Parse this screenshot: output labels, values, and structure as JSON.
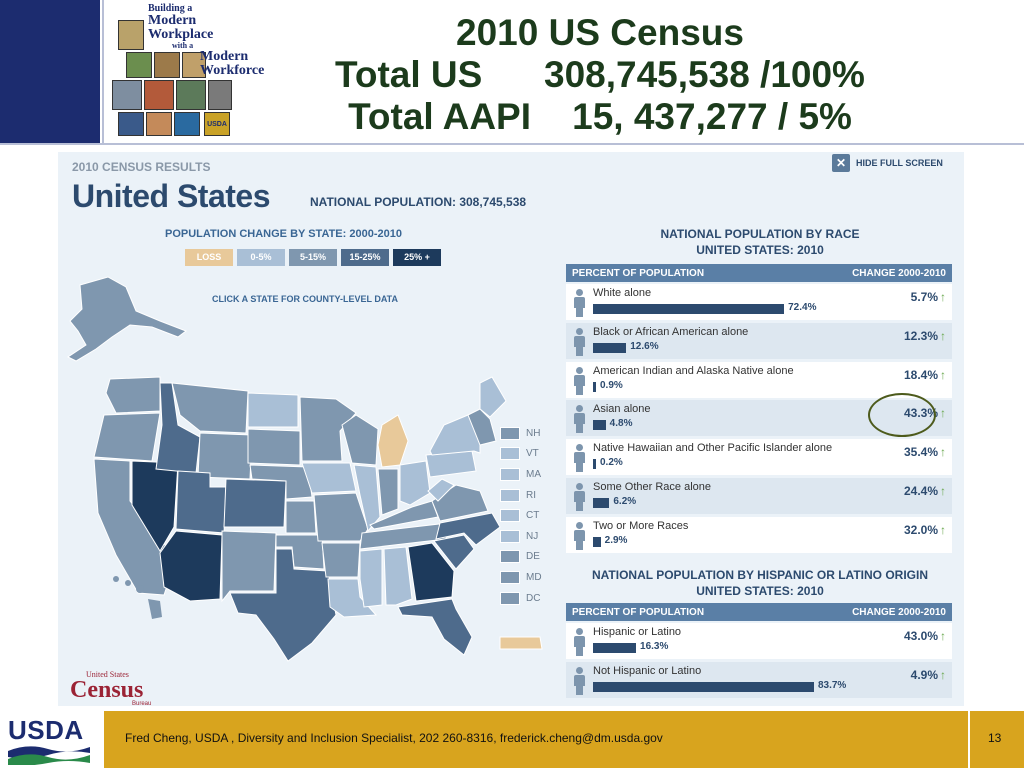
{
  "slide": {
    "title_lines": [
      "2010 US Census",
      "Total US      308,745,538 /100%",
      "Total AAPI    15, 437,277 / 5%"
    ],
    "logo": {
      "line1": "Building a",
      "line2": "Modern",
      "line3": "Workplace",
      "line4": "with a",
      "line5": "Modern",
      "line6": "Workforce",
      "tile_label": "USDA"
    },
    "footer_text": "Fred Cheng, USDA , Diversity and Inclusion Specialist, 202 260-8316, frederick.cheng@dm.usda.gov",
    "page_number": "13",
    "usda_logo_text": "USDA"
  },
  "census": {
    "kicker": "2010 CENSUS RESULTS",
    "country": "United States",
    "national_population": "NATIONAL POPULATION: 308,745,538",
    "hide_full_screen": "HIDE FULL SCREEN",
    "map": {
      "title": "POPULATION CHANGE BY STATE: 2000-2010",
      "click_note": "CLICK A STATE FOR COUNTY-LEVEL DATA",
      "legend": [
        {
          "label": "LOSS",
          "color": "#e8c99a"
        },
        {
          "label": "0-5%",
          "color": "#a9bfd6"
        },
        {
          "label": "5-15%",
          "color": "#7f97af"
        },
        {
          "label": "15-25%",
          "color": "#4e6b8c"
        },
        {
          "label": "25% +",
          "color": "#1d3a5c"
        }
      ],
      "small_states": [
        "NH",
        "VT",
        "MA",
        "RI",
        "CT",
        "NJ",
        "DE",
        "MD",
        "DC"
      ]
    },
    "logo": {
      "top": "United States",
      "main": "Census",
      "sub": "Bureau"
    }
  },
  "chart_data": [
    {
      "type": "bar",
      "title": "NATIONAL POPULATION BY RACE",
      "subtitle": "UNITED STATES: 2010",
      "header_left": "PERCENT OF POPULATION",
      "header_right": "CHANGE 2000-2010",
      "categories": [
        "White alone",
        "Black or African American alone",
        "American Indian and Alaska Native alone",
        "Asian alone",
        "Native Hawaiian and Other Pacific Islander alone",
        "Some Other Race alone",
        "Two or More Races"
      ],
      "values": [
        72.4,
        12.6,
        0.9,
        4.8,
        0.2,
        6.2,
        2.9
      ],
      "value_labels": [
        "72.4%",
        "12.6%",
        "0.9%",
        "4.8%",
        "0.2%",
        "6.2%",
        "2.9%"
      ],
      "change": [
        "5.7%",
        "12.3%",
        "18.4%",
        "43.3%",
        "35.4%",
        "24.4%",
        "32.0%"
      ],
      "ylim": [
        0,
        100
      ]
    },
    {
      "type": "bar",
      "title": "NATIONAL POPULATION BY HISPANIC OR LATINO ORIGIN",
      "subtitle": "UNITED STATES: 2010",
      "header_left": "PERCENT OF POPULATION",
      "header_right": "CHANGE 2000-2010",
      "categories": [
        "Hispanic or Latino",
        "Not Hispanic or Latino"
      ],
      "values": [
        16.3,
        83.7
      ],
      "value_labels": [
        "16.3%",
        "83.7%"
      ],
      "change": [
        "43.0%",
        "4.9%"
      ],
      "ylim": [
        0,
        100
      ]
    }
  ]
}
